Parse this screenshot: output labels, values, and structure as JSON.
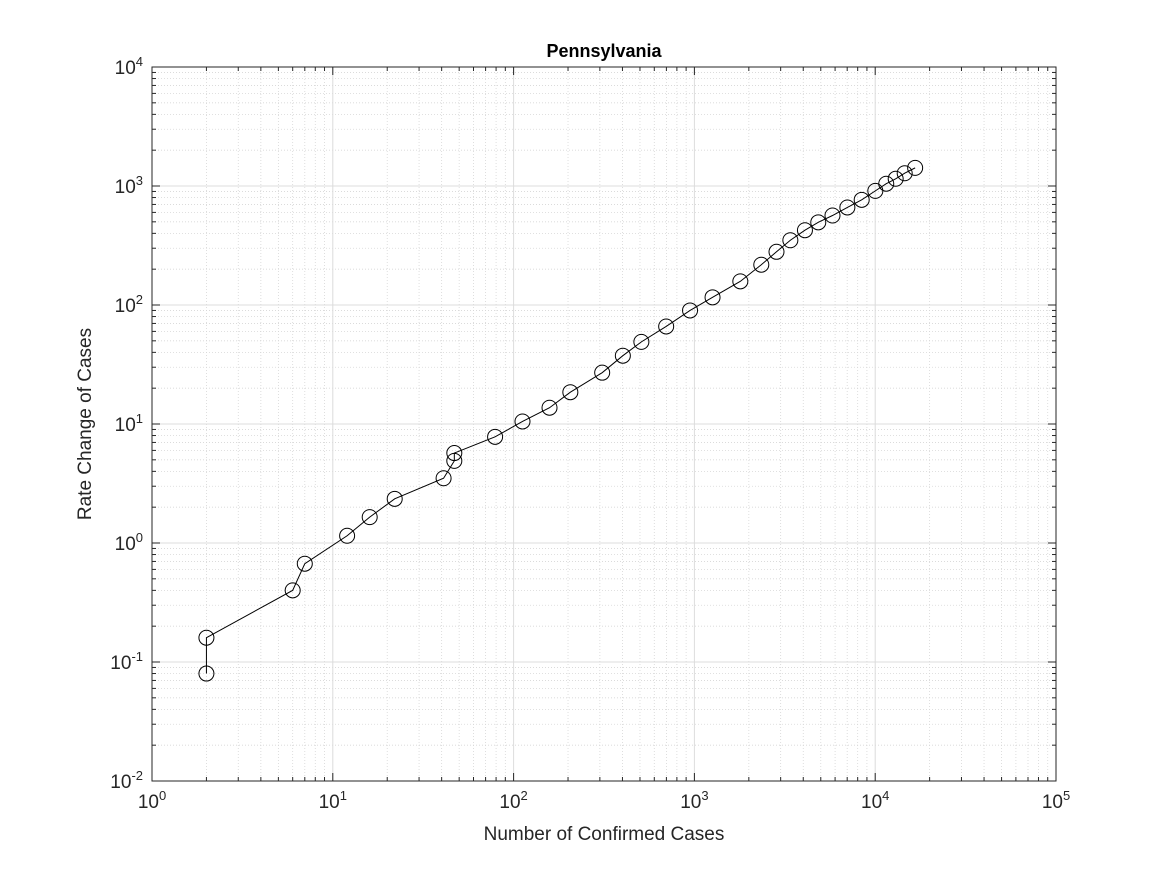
{
  "chart_data": {
    "type": "line",
    "title": "Pennsylvania",
    "xlabel": "Number of Confirmed Cases",
    "ylabel": "Rate Change of Cases",
    "x_scale": "log",
    "y_scale": "log",
    "xlim": [
      1,
      100000
    ],
    "ylim": [
      0.01,
      10000
    ],
    "grid": true,
    "minor_grid": true,
    "marker": "circle",
    "x_ticks": [
      {
        "base": "10",
        "exp": "0",
        "value": 1
      },
      {
        "base": "10",
        "exp": "1",
        "value": 10
      },
      {
        "base": "10",
        "exp": "2",
        "value": 100
      },
      {
        "base": "10",
        "exp": "3",
        "value": 1000
      },
      {
        "base": "10",
        "exp": "4",
        "value": 10000
      },
      {
        "base": "10",
        "exp": "5",
        "value": 100000
      }
    ],
    "y_ticks": [
      {
        "base": "10",
        "exp": "-2",
        "value": 0.01
      },
      {
        "base": "10",
        "exp": "-1",
        "value": 0.1
      },
      {
        "base": "10",
        "exp": "0",
        "value": 1
      },
      {
        "base": "10",
        "exp": "1",
        "value": 10
      },
      {
        "base": "10",
        "exp": "2",
        "value": 100
      },
      {
        "base": "10",
        "exp": "3",
        "value": 1000
      },
      {
        "base": "10",
        "exp": "4",
        "value": 10000
      }
    ],
    "series": [
      {
        "color": "#000000",
        "x": [
          2,
          2,
          6,
          7,
          12,
          16,
          22,
          41,
          47,
          47,
          79,
          112,
          158,
          206,
          309,
          402,
          509,
          698,
          946,
          1260,
          1795,
          2344,
          2845,
          3394,
          4087,
          4843,
          5805,
          7016,
          8420,
          10017,
          11510,
          12980,
          14559,
          16631
        ],
        "y": [
          0.08,
          0.16,
          0.4,
          0.67,
          1.15,
          1.65,
          2.35,
          3.5,
          4.9,
          5.7,
          7.8,
          10.5,
          13.7,
          18.5,
          27,
          37.5,
          49,
          66,
          90,
          116,
          158,
          218,
          280,
          350,
          425,
          495,
          565,
          660,
          765,
          910,
          1045,
          1150,
          1280,
          1420
        ]
      }
    ]
  }
}
